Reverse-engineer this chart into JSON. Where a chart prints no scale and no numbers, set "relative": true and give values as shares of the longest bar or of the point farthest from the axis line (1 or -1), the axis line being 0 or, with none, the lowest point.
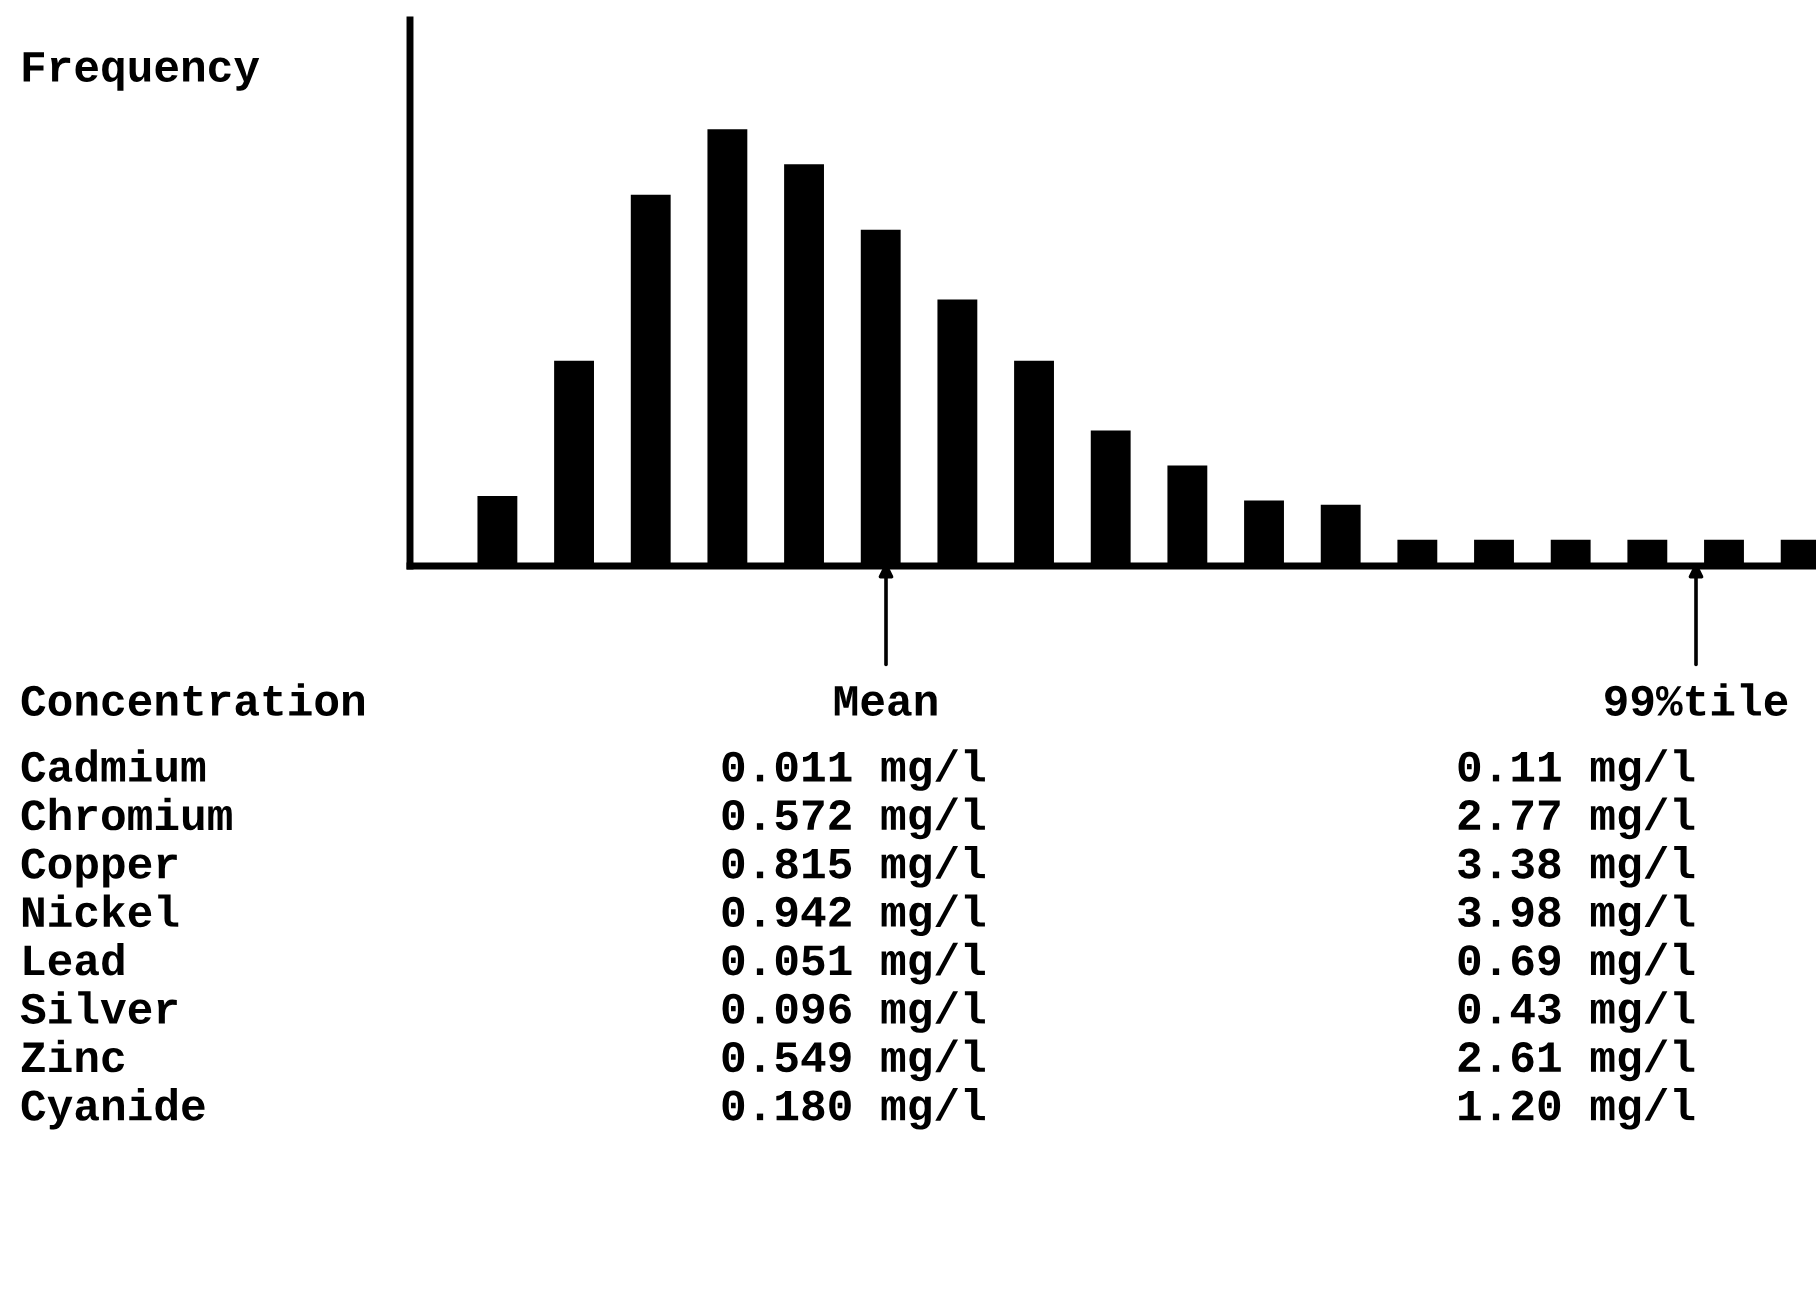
{
  "chart_data": {
    "type": "bar",
    "relative": true,
    "ylabel": "Frequency",
    "xlabel": "Concentration",
    "categories": [
      null,
      null,
      null,
      null,
      null,
      null,
      null,
      null,
      null,
      null,
      null,
      null,
      null,
      null,
      null,
      null,
      null,
      null
    ],
    "values": [
      0.16,
      0.47,
      0.85,
      1,
      0.92,
      0.77,
      0.61,
      0.47,
      0.31,
      0.23,
      0.15,
      0.14,
      0.06,
      0.06,
      0.06,
      0.06,
      0.06,
      0.06
    ],
    "color": "#000000",
    "annotations": [
      "Mean",
      "99%tile",
      "Cadmium",
      "0.011 mg/l",
      "0.11 mg/l",
      "Chromium",
      "0.572 mg/l",
      "2.77 mg/l",
      "Copper",
      "0.815 mg/l",
      "3.38 mg/l",
      "Nickel",
      "0.942 mg/l",
      "3.98 mg/l",
      "Lead",
      "0.051 mg/l",
      "0.69 mg/l",
      "Silver",
      "0.096 mg/l",
      "0.43 mg/l",
      "Zinc",
      "0.549 mg/l",
      "2.61 mg/l",
      "Cyanide",
      "0.180 mg/l",
      "1.20 mg/l"
    ],
    "grid": false
  }
}
